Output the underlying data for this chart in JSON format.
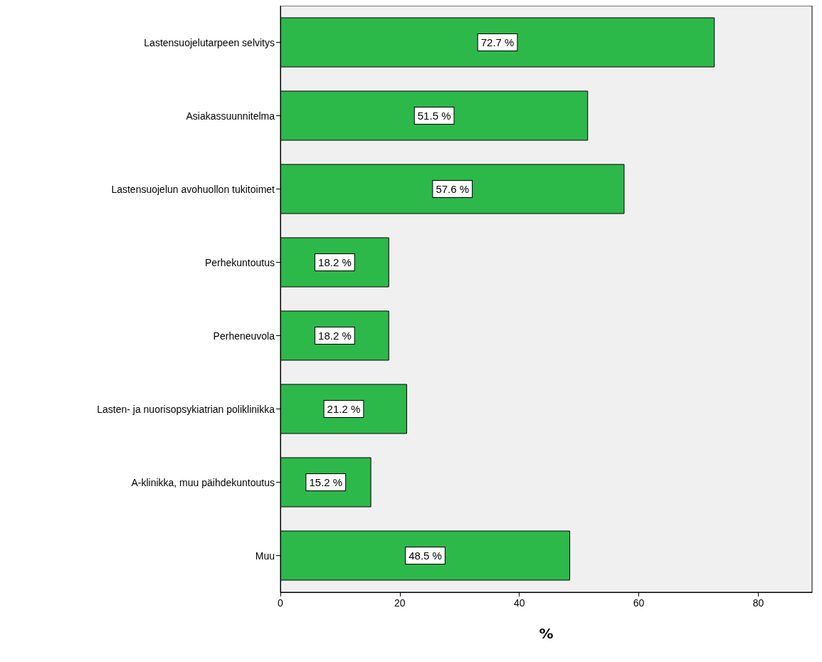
{
  "chart_data": {
    "type": "bar",
    "orientation": "horizontal",
    "xlabel": "%",
    "categories": [
      "Lastensuojelutarpeen selvitys",
      "Asiakassuunnitelma",
      "Lastensuojelun avohuollon tukitoimet",
      "Perhekuntoutus",
      "Perheneuvola",
      "Lasten- ja nuorisopsykiatrian poliklinikka",
      "A-klinikka, muu päihdekuntoutus",
      "Muu"
    ],
    "values": [
      72.7,
      51.5,
      57.6,
      18.2,
      18.2,
      21.2,
      15.2,
      48.5
    ],
    "value_labels": [
      "72.7 %",
      "51.5 %",
      "57.6 %",
      "18.2 %",
      "18.2 %",
      "21.2 %",
      "15.2 %",
      "48.5 %"
    ],
    "color": "#2db84a",
    "xlim": [
      0,
      89
    ],
    "xticks": [
      0,
      20,
      40,
      60,
      80
    ],
    "grid": false
  }
}
